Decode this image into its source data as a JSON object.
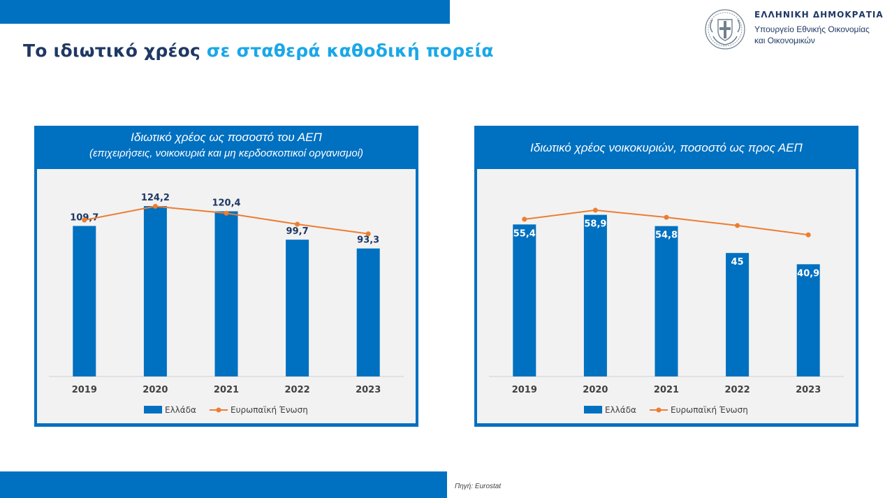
{
  "header": {
    "title_part1": "Το ιδιωτικό χρέος ",
    "title_part2": "σε σταθερά καθοδική πορεία",
    "gov_name": "ΕΛΛΗΝΙΚΗ ΔΗΜΟΚΡΑΤΙΑ",
    "ministry_line1": "Υπουργείο Εθνικής Οικονομίας",
    "ministry_line2": "και Οικονομικών"
  },
  "footer": {
    "source": "Πηγή: Eurostat"
  },
  "colors": {
    "brand_blue": "#0070c0",
    "title_navy": "#1f3864",
    "title_accent": "#1aa7e8",
    "bar": "#0070c0",
    "line": "#ed7d31",
    "panel_bg": "#f2f2f2"
  },
  "chart_data": [
    {
      "type": "bar",
      "title": "Ιδιωτικό χρέος ως ποσοστό του ΑΕΠ",
      "subtitle": "(επιχειρήσεις, νοικοκυριά και μη κερδοσκοπικοί οργανισμοί)",
      "categories": [
        "2019",
        "2020",
        "2021",
        "2022",
        "2023"
      ],
      "series": [
        {
          "name": "Ελλάδα",
          "kind": "bar",
          "values": [
            109.7,
            124.2,
            120.4,
            99.7,
            93.3
          ],
          "labels": [
            "109,7",
            "124,2",
            "120,4",
            "99,7",
            "93,3"
          ],
          "label_position": "above"
        },
        {
          "name": "Ευρωπαϊκή Ένωση",
          "kind": "line",
          "values": [
            114,
            124,
            119,
            111,
            104
          ]
        }
      ],
      "ylim": [
        0,
        140
      ],
      "grid": false,
      "legend": "bottom"
    },
    {
      "type": "bar",
      "title": "Ιδιωτικό χρέος νοικοκυριών, ποσοστό ως προς ΑΕΠ",
      "subtitle": "",
      "categories": [
        "2019",
        "2020",
        "2021",
        "2022",
        "2023"
      ],
      "series": [
        {
          "name": "Ελλάδα",
          "kind": "bar",
          "values": [
            55.4,
            58.9,
            54.8,
            45,
            40.9
          ],
          "labels": [
            "55,4",
            "58,9",
            "54,8",
            "45",
            "40,9"
          ],
          "label_position": "inside"
        },
        {
          "name": "Ευρωπαϊκή Ένωση",
          "kind": "line",
          "values": [
            57.3,
            60.6,
            58.0,
            55.0,
            51.6
          ]
        }
      ],
      "ylim": [
        0,
        70
      ],
      "grid": false,
      "legend": "bottom"
    }
  ]
}
